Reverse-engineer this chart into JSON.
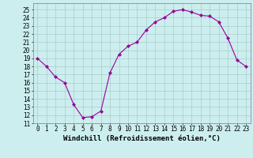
{
  "x": [
    0,
    1,
    2,
    3,
    4,
    5,
    6,
    7,
    8,
    9,
    10,
    11,
    12,
    13,
    14,
    15,
    16,
    17,
    18,
    19,
    20,
    21,
    22,
    23
  ],
  "y": [
    19,
    18,
    16.7,
    16,
    13.3,
    11.7,
    11.8,
    12.5,
    17.2,
    19.5,
    20.5,
    21,
    22.5,
    23.5,
    24,
    24.8,
    25,
    24.7,
    24.3,
    24.2,
    23.5,
    21.5,
    18.8,
    18
  ],
  "line_color": "#990099",
  "marker": "D",
  "marker_size": 2,
  "bg_color": "#cceeee",
  "grid_color": "#aacccc",
  "xlabel": "Windchill (Refroidissement éolien,°C)",
  "xlabel_fontsize": 6.5,
  "xlim": [
    -0.5,
    23.5
  ],
  "ylim": [
    11,
    25.8
  ],
  "yticks": [
    11,
    12,
    13,
    14,
    15,
    16,
    17,
    18,
    19,
    20,
    21,
    22,
    23,
    24,
    25
  ],
  "xticks": [
    0,
    1,
    2,
    3,
    4,
    5,
    6,
    7,
    8,
    9,
    10,
    11,
    12,
    13,
    14,
    15,
    16,
    17,
    18,
    19,
    20,
    21,
    22,
    23
  ],
  "tick_fontsize": 5.5,
  "spine_color": "#8888aa",
  "fig_width": 3.2,
  "fig_height": 2.0,
  "dpi": 100
}
